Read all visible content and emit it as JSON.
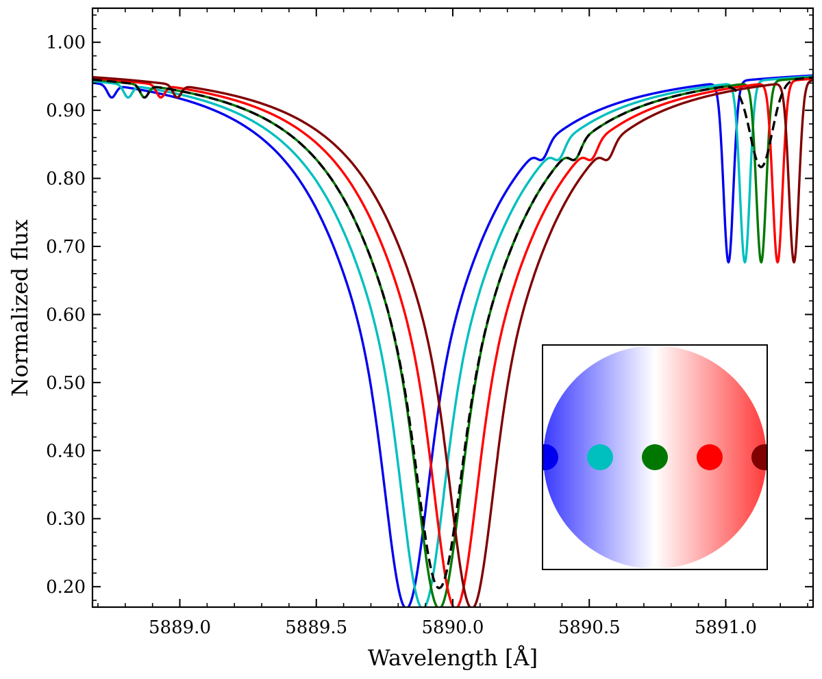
{
  "chart_data": {
    "type": "line",
    "title": "",
    "xlabel": "Wavelength [Å]",
    "ylabel": "Normalized flux",
    "xlim": [
      5888.68,
      5891.32
    ],
    "ylim": [
      0.17,
      1.05
    ],
    "xticks": [
      5889.0,
      5889.5,
      5890.0,
      5890.5,
      5891.0
    ],
    "xtick_labels": [
      "5889.0",
      "5889.5",
      "5890.0",
      "5890.5",
      "5891.0"
    ],
    "yticks": [
      0.2,
      0.3,
      0.4,
      0.5,
      0.6,
      0.7,
      0.8,
      0.9,
      1.0
    ],
    "ytick_labels": [
      "0.20",
      "0.30",
      "0.40",
      "0.50",
      "0.60",
      "0.70",
      "0.80",
      "0.90",
      "1.00"
    ],
    "grid": false,
    "series": [
      {
        "name": "blue",
        "color": "#0000ee",
        "dash": false,
        "shift": -0.12
      },
      {
        "name": "cyan",
        "color": "#00bfbf",
        "dash": false,
        "shift": -0.06
      },
      {
        "name": "green",
        "color": "#007700",
        "dash": false,
        "shift": 0.0
      },
      {
        "name": "red",
        "color": "#ff0000",
        "dash": false,
        "shift": 0.06
      },
      {
        "name": "darkred",
        "color": "#800000",
        "dash": false,
        "shift": 0.12
      },
      {
        "name": "average",
        "color": "#000000",
        "dash": true,
        "shift": 0.0
      }
    ],
    "line_profile": {
      "main_center": 5889.95,
      "main_min": 0.2,
      "secondary_center": 5891.13,
      "secondary_min": 0.69,
      "average_secondary_min": 0.83,
      "average_main_min": 0.22
    },
    "inset": {
      "description_colors": [
        "#3a3aff",
        "#ffffff",
        "#ff3a3a"
      ],
      "dots": [
        {
          "name": "blue",
          "color": "#0000ee",
          "position": 0.0
        },
        {
          "name": "cyan",
          "color": "#00bfbf",
          "position": 0.25
        },
        {
          "name": "green",
          "color": "#007700",
          "position": 0.5
        },
        {
          "name": "red",
          "color": "#ff0000",
          "position": 0.75
        },
        {
          "name": "darkred",
          "color": "#800000",
          "position": 1.0
        }
      ]
    }
  }
}
